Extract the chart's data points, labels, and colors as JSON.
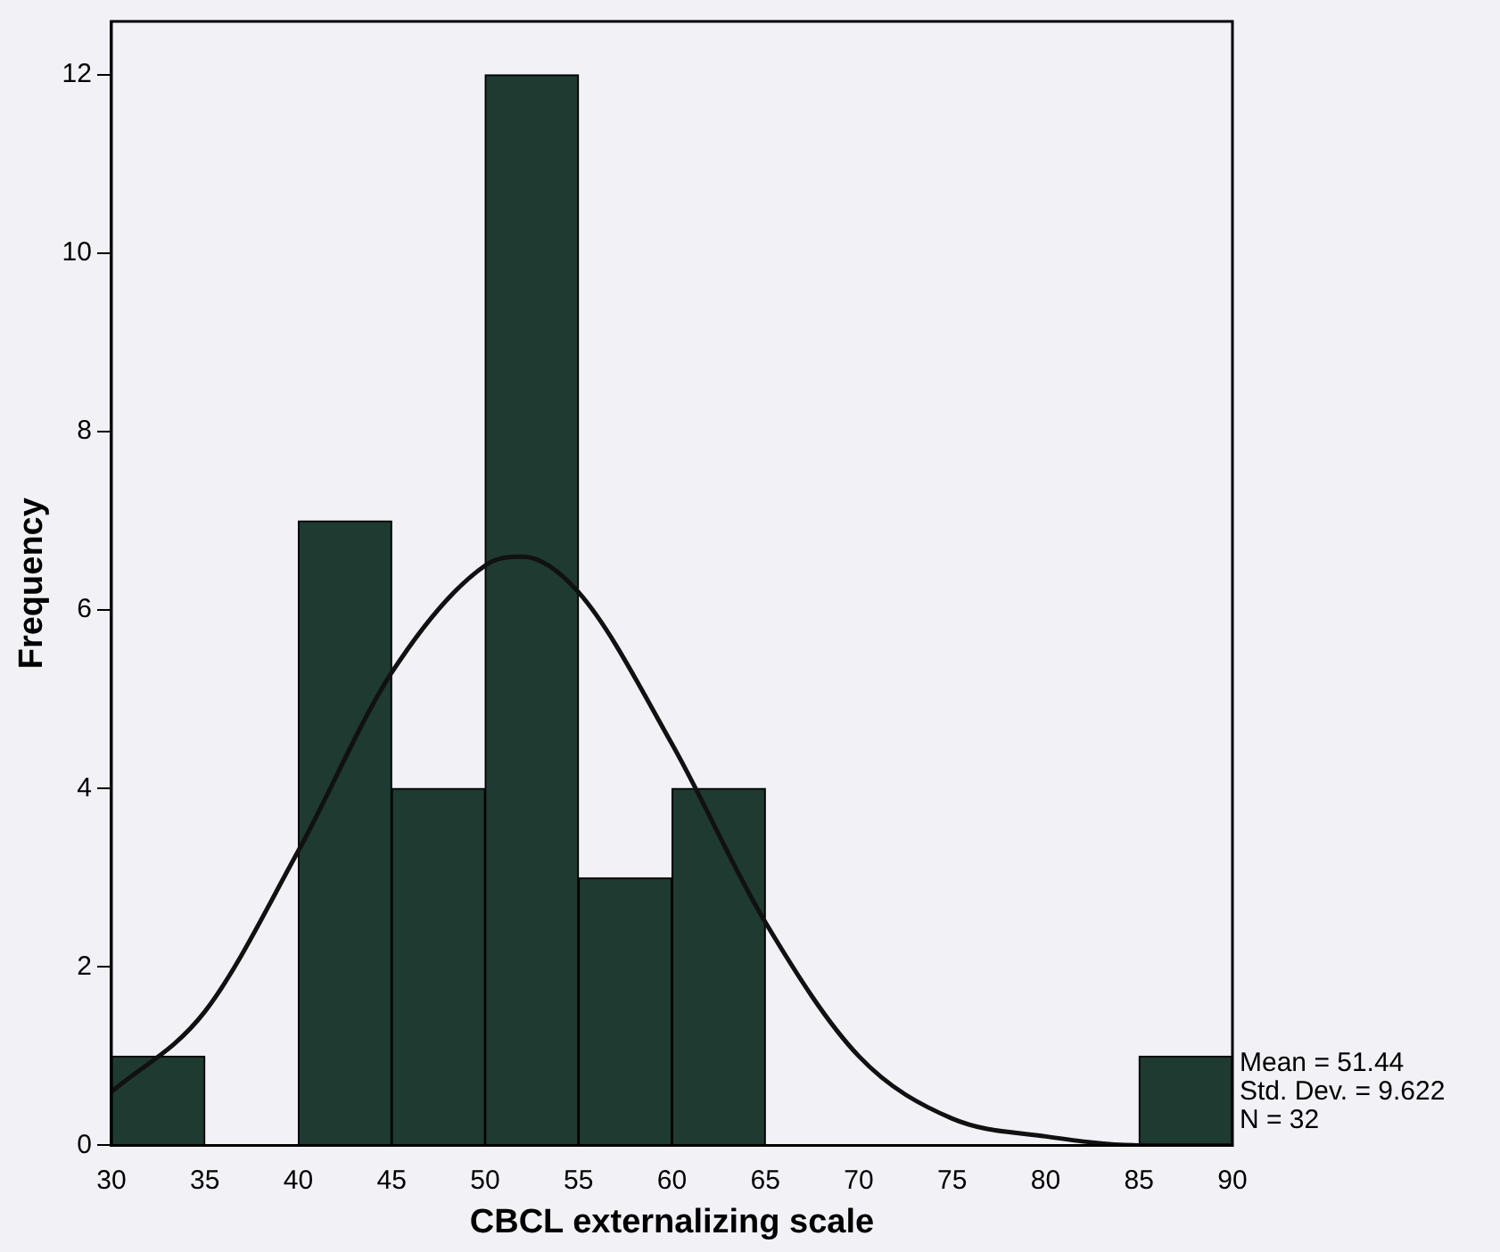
{
  "chart_data": {
    "type": "histogram",
    "xlabel": "CBCL externalizing scale",
    "ylabel": "Frequency",
    "bins": [
      30,
      35,
      40,
      45,
      50,
      55,
      60,
      65,
      70,
      75,
      80,
      85,
      90
    ],
    "values": [
      1,
      0,
      7,
      4,
      12,
      3,
      4,
      0,
      0,
      0,
      0,
      1
    ],
    "color": "#1f3a30",
    "series": [
      {
        "type": "line",
        "color": "#111111",
        "marker": "none",
        "x": [
          30,
          35,
          40,
          45,
          50,
          52,
          55,
          60,
          65,
          70,
          75,
          80,
          85,
          90
        ],
        "values": [
          0.6,
          1.5,
          3.3,
          5.3,
          6.5,
          6.6,
          6.2,
          4.5,
          2.5,
          1.0,
          0.3,
          0.1,
          0,
          0
        ]
      }
    ],
    "xlim": [
      30,
      90
    ],
    "xticks": [
      30,
      35,
      40,
      45,
      50,
      55,
      60,
      65,
      70,
      75,
      80,
      85,
      90
    ],
    "ylim": [
      0,
      12.6
    ],
    "yticks": [
      0,
      2,
      4,
      6,
      8,
      10,
      12
    ],
    "annotations": [
      "Mean = 51.44",
      "Std. Dev. = 9.622",
      "N = 32"
    ]
  }
}
